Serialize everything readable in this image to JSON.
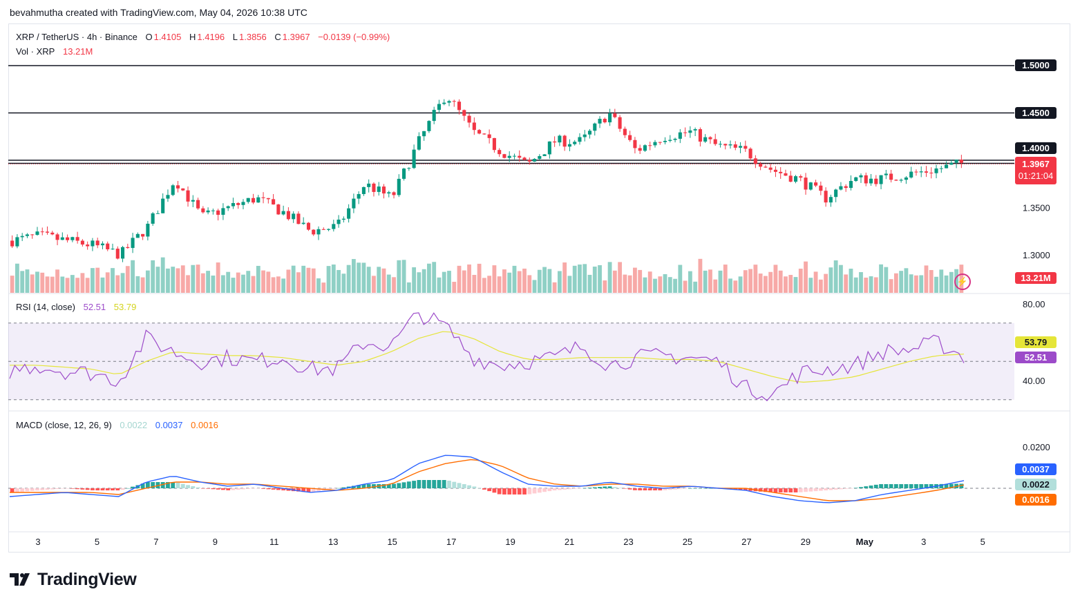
{
  "header": {
    "text": "bevahmutha created with TradingView.com, May 04, 2026 10:38 UTC"
  },
  "legend": {
    "symbol": "XRP / TetherUS · 4h · Binance",
    "o_label": "O",
    "o": "1.4105",
    "h_label": "H",
    "h": "1.4196",
    "l_label": "L",
    "l": "1.3856",
    "c_label": "C",
    "c": "1.3967",
    "change": "−0.0139 (−0.99%)",
    "vol_label": "Vol · XRP",
    "vol": "13.21M",
    "rsi_label": "RSI (14, close)",
    "rsi_value": "52.51",
    "rsi_ma": "53.79",
    "macd_label": "MACD (close, 12, 26, 9)",
    "macd_hist": "0.0022",
    "macd_line": "0.0037",
    "macd_signal": "0.0016"
  },
  "axis_tags": {
    "level_1500": "1.5000",
    "level_1450": "1.4500",
    "level_1400": "1.4000",
    "price": "1.3967",
    "countdown": "01:21:04",
    "vol": "13.21M",
    "rsi_ma": "53.79",
    "rsi": "52.51",
    "macd_line": "0.0037",
    "macd_hist": "0.0022",
    "macd_signal": "0.0016"
  },
  "price_ticks": [
    "1.3500",
    "1.3000"
  ],
  "rsi_ticks": [
    "80.00",
    "40.00"
  ],
  "macd_ticks": [
    "0.0200"
  ],
  "date_ticks": [
    "3",
    "5",
    "7",
    "9",
    "11",
    "13",
    "15",
    "17",
    "19",
    "21",
    "23",
    "25",
    "27",
    "29",
    "May",
    "3",
    "5"
  ],
  "brand": "TradingView",
  "colors": {
    "up": "#089981",
    "down": "#f23645",
    "rsi": "#9c4bc9",
    "rsi_ma": "#e5e539",
    "macd": "#2962ff",
    "signal": "#ff6d00"
  },
  "chart_data": [
    {
      "type": "line",
      "title": "XRP / TetherUS · 4h · Binance",
      "x_unit": "date (Apr 2 – May 4, 2026)",
      "ylim": [
        1.26,
        1.52
      ],
      "horizontal_lines": [
        1.5,
        1.45,
        1.4,
        1.3967
      ],
      "series": [
        {
          "name": "C",
          "x": [
            "Apr 2",
            "Apr 3",
            "Apr 4",
            "Apr 5",
            "Apr 6",
            "Apr 7",
            "Apr 8",
            "Apr 9",
            "Apr 10",
            "Apr 11",
            "Apr 12",
            "Apr 13",
            "Apr 14",
            "Apr 15",
            "Apr 16",
            "Apr 17",
            "Apr 17.5",
            "Apr 18",
            "Apr 19",
            "Apr 20",
            "Apr 21",
            "Apr 22",
            "Apr 22.5",
            "Apr 23",
            "Apr 24",
            "Apr 25",
            "Apr 26",
            "Apr 27",
            "Apr 28",
            "Apr 29",
            "Apr 29.5",
            "Apr 30",
            "May 1",
            "May 2",
            "May 3",
            "May 4"
          ],
          "values": [
            1.315,
            1.32,
            1.315,
            1.31,
            1.3,
            1.33,
            1.38,
            1.34,
            1.35,
            1.36,
            1.345,
            1.325,
            1.33,
            1.375,
            1.36,
            1.42,
            1.47,
            1.43,
            1.41,
            1.395,
            1.42,
            1.42,
            1.45,
            1.41,
            1.425,
            1.43,
            1.415,
            1.41,
            1.39,
            1.38,
            1.36,
            1.38,
            1.38,
            1.385,
            1.39,
            1.3967
          ]
        }
      ]
    },
    {
      "type": "bar",
      "title": "Vol · XRP",
      "last_value": "13.21M"
    },
    {
      "type": "line",
      "title": "RSI (14, close)",
      "ylim": [
        30,
        80
      ],
      "bands": [
        70,
        50,
        30
      ],
      "series": [
        {
          "name": "52.51",
          "values": [
            45,
            48,
            45,
            44,
            40,
            62,
            55,
            50,
            52,
            50,
            52,
            46,
            46,
            60,
            58,
            75,
            68,
            52,
            48,
            50,
            52,
            58,
            48,
            52,
            53,
            52,
            50,
            36,
            33,
            44,
            46,
            48,
            55,
            56,
            60,
            52.51
          ]
        },
        {
          "name": "53.79",
          "values": [
            48,
            48,
            47,
            46,
            43,
            50,
            55,
            54,
            53,
            53,
            52,
            50,
            48,
            50,
            55,
            62,
            66,
            62,
            55,
            51,
            51,
            52,
            52,
            52,
            51,
            51,
            50,
            46,
            42,
            39,
            40,
            42,
            46,
            50,
            53,
            53.79
          ]
        }
      ]
    },
    {
      "type": "line",
      "title": "MACD (close, 12, 26, 9)",
      "series": [
        {
          "name": "0.0037",
          "values": [
            -0.004,
            -0.003,
            -0.002,
            -0.003,
            -0.004,
            0.003,
            0.006,
            0.003,
            0.001,
            0.002,
            0.0,
            -0.002,
            -0.001,
            0.002,
            0.004,
            0.012,
            0.016,
            0.015,
            0.008,
            0.002,
            0.001,
            0.001,
            0.003,
            0.001,
            0.0,
            0.001,
            0.0,
            -0.001,
            -0.004,
            -0.006,
            -0.007,
            -0.006,
            -0.003,
            -0.001,
            0.001,
            0.0037
          ]
        },
        {
          "name": "0.0016",
          "values": [
            -0.002,
            -0.002,
            -0.002,
            -0.002,
            -0.003,
            0.0,
            0.003,
            0.003,
            0.002,
            0.002,
            0.001,
            0.0,
            -0.001,
            0.0,
            0.002,
            0.008,
            0.012,
            0.014,
            0.011,
            0.005,
            0.002,
            0.001,
            0.002,
            0.002,
            0.001,
            0.001,
            0.0,
            0.0,
            -0.002,
            -0.004,
            -0.006,
            -0.006,
            -0.005,
            -0.003,
            -0.001,
            0.0016
          ]
        },
        {
          "name": "0.0022",
          "type": "bar",
          "values": [
            -0.002,
            -0.001,
            0.0,
            -0.001,
            -0.001,
            0.003,
            0.003,
            0.0,
            -0.001,
            0.0,
            -0.001,
            -0.002,
            0.0,
            0.002,
            0.002,
            0.004,
            0.004,
            0.001,
            -0.003,
            -0.003,
            -0.001,
            0.0,
            0.001,
            -0.001,
            -0.001,
            0.0,
            0.0,
            -0.001,
            -0.002,
            -0.002,
            -0.001,
            0.0,
            0.002,
            0.002,
            0.002,
            0.0022
          ]
        }
      ]
    }
  ]
}
